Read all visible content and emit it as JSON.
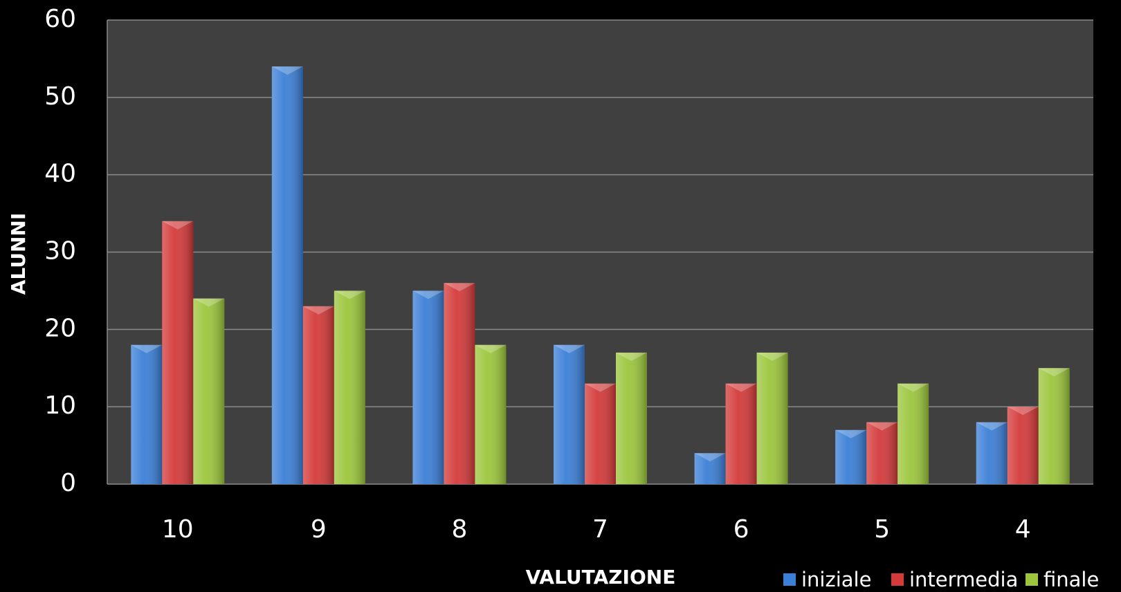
{
  "chart_data": {
    "type": "bar",
    "categories": [
      "10",
      "9",
      "8",
      "7",
      "6",
      "5",
      "4"
    ],
    "series": [
      {
        "name": "iniziale",
        "color": "#3b7fd6",
        "values": [
          18,
          54,
          25,
          18,
          4,
          7,
          8
        ]
      },
      {
        "name": "intermedia",
        "color": "#d43a3a",
        "values": [
          34,
          23,
          26,
          13,
          13,
          8,
          10
        ]
      },
      {
        "name": "finale",
        "color": "#9cc63c",
        "values": [
          24,
          25,
          18,
          17,
          17,
          13,
          15
        ]
      }
    ],
    "xlabel": "VALUTAZIONE",
    "ylabel": "ALUNNI",
    "ylim": [
      0,
      60
    ],
    "yticks": [
      0,
      10,
      20,
      30,
      40,
      50,
      60
    ],
    "grid": true,
    "legend": "bottom-right"
  }
}
